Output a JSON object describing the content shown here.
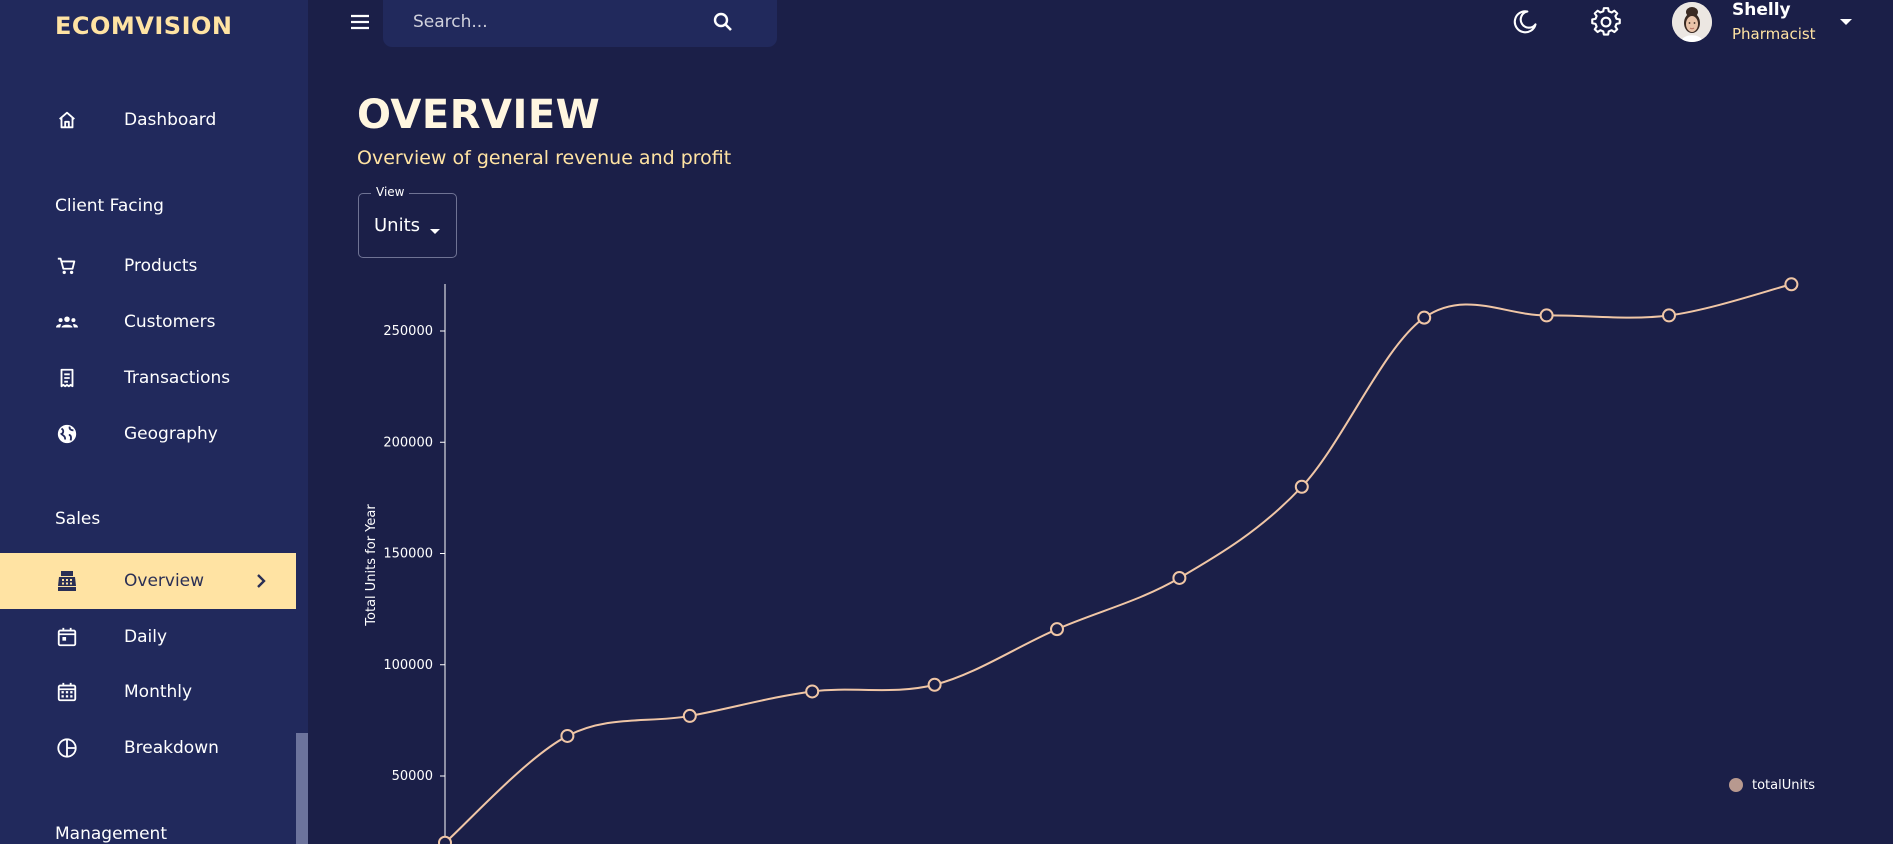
{
  "app": {
    "brand": "ECOMVISION"
  },
  "sidebar": {
    "items": [
      {
        "label": "Dashboard",
        "icon": "home-icon"
      },
      {
        "label": "Products",
        "icon": "cart-icon"
      },
      {
        "label": "Customers",
        "icon": "groups-icon"
      },
      {
        "label": "Transactions",
        "icon": "receipt-icon"
      },
      {
        "label": "Geography",
        "icon": "globe-icon"
      },
      {
        "label": "Overview",
        "icon": "point-of-sale-icon"
      },
      {
        "label": "Daily",
        "icon": "calendar-today-icon"
      },
      {
        "label": "Monthly",
        "icon": "calendar-month-icon"
      },
      {
        "label": "Breakdown",
        "icon": "pie-chart-icon"
      }
    ],
    "sections": [
      "Client Facing",
      "Sales",
      "Management"
    ],
    "active_item": "Overview"
  },
  "topbar": {
    "search_placeholder": "Search...",
    "user": {
      "name": "Shelly",
      "role": "Pharmacist"
    }
  },
  "header": {
    "title": "OVERVIEW",
    "subtitle": "Overview of general revenue and profit"
  },
  "view_select": {
    "legend": "View",
    "value": "Units"
  },
  "colors": {
    "background": "#1b1f48",
    "sidebar": "#21295c",
    "accent": "#ffe3a3",
    "line": "#f0c6a6",
    "legend_dot": "#b8998f"
  },
  "chart_data": {
    "type": "line",
    "ylabel": "Total Units for Year",
    "yticks": [
      "250000",
      "200000",
      "150000",
      "100000",
      "50000"
    ],
    "ylim": [
      0,
      270000
    ],
    "legend": {
      "label": "totalUnits",
      "placement": "bottom-right"
    },
    "series": [
      {
        "name": "totalUnits",
        "values": [
          20000,
          68000,
          77000,
          88000,
          91000,
          116000,
          139000,
          180000,
          256000,
          257000,
          257000,
          271000
        ]
      }
    ]
  }
}
